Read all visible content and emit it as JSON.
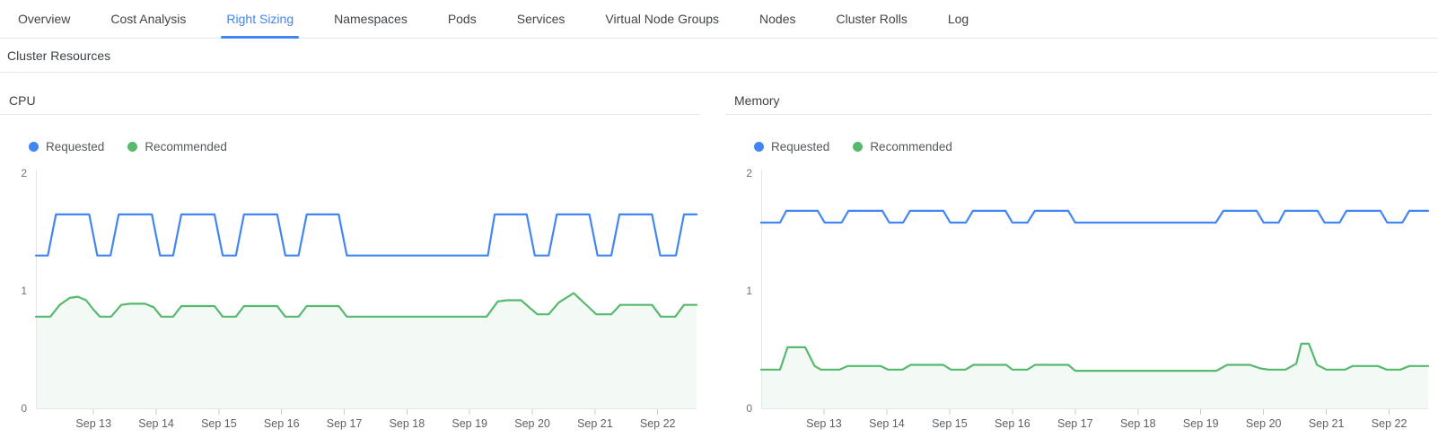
{
  "tabs": {
    "items": [
      {
        "label": "Overview",
        "active": false
      },
      {
        "label": "Cost Analysis",
        "active": false
      },
      {
        "label": "Right Sizing",
        "active": true
      },
      {
        "label": "Namespaces",
        "active": false
      },
      {
        "label": "Pods",
        "active": false
      },
      {
        "label": "Services",
        "active": false
      },
      {
        "label": "Virtual Node Groups",
        "active": false
      },
      {
        "label": "Nodes",
        "active": false
      },
      {
        "label": "Cluster Rolls",
        "active": false
      },
      {
        "label": "Log",
        "active": false
      }
    ]
  },
  "section": {
    "title": "Cluster Resources"
  },
  "colors": {
    "accent_blue": "#4285f4",
    "requested_blue": "#4285f4",
    "recommended_green": "#56b96d",
    "green_area_fill": "rgba(86,185,109,0.07)",
    "axis_line": "#e4e6e9",
    "tick_mark": "#c7cbcf",
    "tick_label": "#5d6165",
    "y_label": "#6d7277"
  },
  "chart_data": [
    {
      "id": "cpu",
      "type": "line",
      "title": "CPU",
      "ylim": [
        0,
        2
      ],
      "y_ticks": [
        0,
        1,
        2
      ],
      "xlim": [
        12.08,
        22.62
      ],
      "x_ticks": [
        {
          "day": 13,
          "label": "Sep 13"
        },
        {
          "day": 14,
          "label": "Sep 14"
        },
        {
          "day": 15,
          "label": "Sep 15"
        },
        {
          "day": 16,
          "label": "Sep 16"
        },
        {
          "day": 17,
          "label": "Sep 17"
        },
        {
          "day": 18,
          "label": "Sep 18"
        },
        {
          "day": 19,
          "label": "Sep 19"
        },
        {
          "day": 20,
          "label": "Sep 20"
        },
        {
          "day": 21,
          "label": "Sep 21"
        },
        {
          "day": 22,
          "label": "Sep 22"
        }
      ],
      "series": [
        {
          "name": "Requested",
          "color": "#4285f4",
          "fill": false,
          "points": [
            [
              12.08,
              1.3
            ],
            [
              12.27,
              1.3
            ],
            [
              12.4,
              1.65
            ],
            [
              12.93,
              1.65
            ],
            [
              13.06,
              1.3
            ],
            [
              13.27,
              1.3
            ],
            [
              13.4,
              1.65
            ],
            [
              13.93,
              1.65
            ],
            [
              14.06,
              1.3
            ],
            [
              14.27,
              1.3
            ],
            [
              14.4,
              1.65
            ],
            [
              14.93,
              1.65
            ],
            [
              15.06,
              1.3
            ],
            [
              15.27,
              1.3
            ],
            [
              15.4,
              1.65
            ],
            [
              15.93,
              1.65
            ],
            [
              16.06,
              1.3
            ],
            [
              16.27,
              1.3
            ],
            [
              16.4,
              1.65
            ],
            [
              16.91,
              1.65
            ],
            [
              17.04,
              1.3
            ],
            [
              19.29,
              1.3
            ],
            [
              19.4,
              1.65
            ],
            [
              19.91,
              1.65
            ],
            [
              20.04,
              1.3
            ],
            [
              20.26,
              1.3
            ],
            [
              20.39,
              1.65
            ],
            [
              20.91,
              1.65
            ],
            [
              21.04,
              1.3
            ],
            [
              21.26,
              1.3
            ],
            [
              21.39,
              1.65
            ],
            [
              21.91,
              1.65
            ],
            [
              22.04,
              1.3
            ],
            [
              22.29,
              1.3
            ],
            [
              22.42,
              1.65
            ],
            [
              22.62,
              1.65
            ]
          ]
        },
        {
          "name": "Recommended",
          "color": "#56b96d",
          "fill": true,
          "points": [
            [
              12.08,
              0.78
            ],
            [
              12.31,
              0.78
            ],
            [
              12.46,
              0.88
            ],
            [
              12.62,
              0.94
            ],
            [
              12.75,
              0.95
            ],
            [
              12.88,
              0.92
            ],
            [
              13.0,
              0.84
            ],
            [
              13.1,
              0.78
            ],
            [
              13.28,
              0.78
            ],
            [
              13.44,
              0.88
            ],
            [
              13.58,
              0.89
            ],
            [
              13.82,
              0.89
            ],
            [
              13.96,
              0.86
            ],
            [
              14.08,
              0.78
            ],
            [
              14.27,
              0.78
            ],
            [
              14.4,
              0.87
            ],
            [
              14.93,
              0.87
            ],
            [
              15.06,
              0.78
            ],
            [
              15.27,
              0.78
            ],
            [
              15.4,
              0.87
            ],
            [
              15.93,
              0.87
            ],
            [
              16.06,
              0.78
            ],
            [
              16.27,
              0.78
            ],
            [
              16.4,
              0.87
            ],
            [
              16.91,
              0.87
            ],
            [
              17.04,
              0.78
            ],
            [
              19.27,
              0.78
            ],
            [
              19.45,
              0.91
            ],
            [
              19.6,
              0.92
            ],
            [
              19.82,
              0.92
            ],
            [
              19.97,
              0.85
            ],
            [
              20.08,
              0.8
            ],
            [
              20.26,
              0.8
            ],
            [
              20.42,
              0.9
            ],
            [
              20.66,
              0.98
            ],
            [
              20.88,
              0.87
            ],
            [
              21.02,
              0.8
            ],
            [
              21.26,
              0.8
            ],
            [
              21.4,
              0.88
            ],
            [
              21.91,
              0.88
            ],
            [
              22.05,
              0.78
            ],
            [
              22.28,
              0.78
            ],
            [
              22.42,
              0.88
            ],
            [
              22.62,
              0.88
            ]
          ]
        }
      ]
    },
    {
      "id": "memory",
      "type": "line",
      "title": "Memory",
      "ylim": [
        0,
        2
      ],
      "y_ticks": [
        0,
        1,
        2
      ],
      "xlim": [
        12.0,
        22.62
      ],
      "x_ticks": [
        {
          "day": 13,
          "label": "Sep 13"
        },
        {
          "day": 14,
          "label": "Sep 14"
        },
        {
          "day": 15,
          "label": "Sep 15"
        },
        {
          "day": 16,
          "label": "Sep 16"
        },
        {
          "day": 17,
          "label": "Sep 17"
        },
        {
          "day": 18,
          "label": "Sep 18"
        },
        {
          "day": 19,
          "label": "Sep 19"
        },
        {
          "day": 20,
          "label": "Sep 20"
        },
        {
          "day": 21,
          "label": "Sep 21"
        },
        {
          "day": 22,
          "label": "Sep 22"
        }
      ],
      "series": [
        {
          "name": "Requested",
          "color": "#4285f4",
          "fill": false,
          "points": [
            [
              12.0,
              1.58
            ],
            [
              12.3,
              1.58
            ],
            [
              12.4,
              1.68
            ],
            [
              12.9,
              1.68
            ],
            [
              13.01,
              1.58
            ],
            [
              13.28,
              1.58
            ],
            [
              13.39,
              1.68
            ],
            [
              13.93,
              1.68
            ],
            [
              14.04,
              1.58
            ],
            [
              14.26,
              1.58
            ],
            [
              14.37,
              1.68
            ],
            [
              14.9,
              1.68
            ],
            [
              15.01,
              1.58
            ],
            [
              15.26,
              1.58
            ],
            [
              15.37,
              1.68
            ],
            [
              15.89,
              1.68
            ],
            [
              16.0,
              1.58
            ],
            [
              16.24,
              1.58
            ],
            [
              16.36,
              1.68
            ],
            [
              16.89,
              1.68
            ],
            [
              17.0,
              1.58
            ],
            [
              19.24,
              1.58
            ],
            [
              19.36,
              1.68
            ],
            [
              19.89,
              1.68
            ],
            [
              20.0,
              1.58
            ],
            [
              20.24,
              1.58
            ],
            [
              20.34,
              1.68
            ],
            [
              20.86,
              1.68
            ],
            [
              20.97,
              1.58
            ],
            [
              21.21,
              1.58
            ],
            [
              21.32,
              1.68
            ],
            [
              21.86,
              1.68
            ],
            [
              21.97,
              1.58
            ],
            [
              22.21,
              1.58
            ],
            [
              22.32,
              1.68
            ],
            [
              22.62,
              1.68
            ]
          ]
        },
        {
          "name": "Recommended",
          "color": "#56b96d",
          "fill": true,
          "points": [
            [
              12.0,
              0.33
            ],
            [
              12.3,
              0.33
            ],
            [
              12.42,
              0.52
            ],
            [
              12.7,
              0.52
            ],
            [
              12.85,
              0.36
            ],
            [
              12.95,
              0.33
            ],
            [
              13.25,
              0.33
            ],
            [
              13.38,
              0.36
            ],
            [
              13.9,
              0.36
            ],
            [
              14.02,
              0.33
            ],
            [
              14.25,
              0.33
            ],
            [
              14.38,
              0.37
            ],
            [
              14.9,
              0.37
            ],
            [
              15.02,
              0.33
            ],
            [
              15.25,
              0.33
            ],
            [
              15.38,
              0.37
            ],
            [
              15.9,
              0.37
            ],
            [
              16.0,
              0.33
            ],
            [
              16.24,
              0.33
            ],
            [
              16.36,
              0.37
            ],
            [
              16.89,
              0.37
            ],
            [
              17.0,
              0.32
            ],
            [
              19.25,
              0.32
            ],
            [
              19.42,
              0.37
            ],
            [
              19.78,
              0.37
            ],
            [
              19.95,
              0.34
            ],
            [
              20.08,
              0.33
            ],
            [
              20.35,
              0.33
            ],
            [
              20.52,
              0.38
            ],
            [
              20.6,
              0.55
            ],
            [
              20.72,
              0.55
            ],
            [
              20.85,
              0.37
            ],
            [
              21.0,
              0.33
            ],
            [
              21.3,
              0.33
            ],
            [
              21.42,
              0.36
            ],
            [
              21.82,
              0.36
            ],
            [
              21.96,
              0.33
            ],
            [
              22.18,
              0.33
            ],
            [
              22.32,
              0.36
            ],
            [
              22.62,
              0.36
            ]
          ]
        }
      ]
    }
  ]
}
